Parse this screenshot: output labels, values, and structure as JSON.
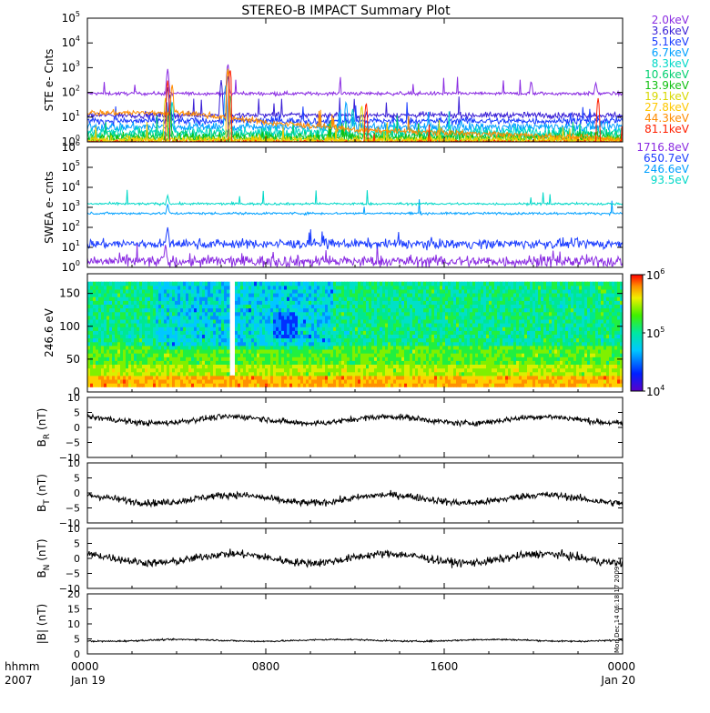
{
  "chart_data": {
    "type": "line",
    "title": "STEREO-B IMPACT Summary Plot",
    "time_axis": {
      "row1_label": "hhmm",
      "row2_label": "2007",
      "ticks": [
        {
          "hhmm": "0000",
          "date": "Jan 19",
          "hours": 0
        },
        {
          "hhmm": "0800",
          "date": "",
          "hours": 8
        },
        {
          "hhmm": "1600",
          "date": "",
          "hours": 16
        },
        {
          "hhmm": "0000",
          "date": "Jan 20",
          "hours": 24
        }
      ],
      "xlim": [
        0,
        24
      ]
    },
    "panels": [
      {
        "id": "ste",
        "type": "line",
        "ylabel": "STE e- Cnts",
        "yscale": "log",
        "ylim": [
          1,
          100000
        ],
        "yticks": [
          [
            "10",
            "0"
          ],
          [
            "10",
            "1"
          ],
          [
            "10",
            "2"
          ],
          [
            "10",
            "3"
          ],
          [
            "10",
            "4"
          ],
          [
            "10",
            "5"
          ]
        ],
        "legend_placement": "right",
        "series": [
          {
            "name": "2.0keV",
            "color": "#8a2be2",
            "base": 90,
            "noise": 0.06,
            "spikes": [
              [
                3.6,
                800
              ],
              [
                6.3,
                1400
              ],
              [
                22.8,
                160
              ],
              [
                19.9,
                200
              ]
            ]
          },
          {
            "name": "3.6keV",
            "color": "#3a1fd6",
            "base": 12,
            "noise": 0.1,
            "spikes": [
              [
                3.6,
                150
              ],
              [
                6.3,
                900
              ],
              [
                6.0,
                300
              ]
            ]
          },
          {
            "name": "5.1keV",
            "color": "#1a3cff",
            "base": 7,
            "noise": 0.12,
            "spikes": [
              [
                3.7,
                80
              ],
              [
                6.3,
                500
              ]
            ]
          },
          {
            "name": "6.7keV",
            "color": "#00a0ff",
            "base": 4,
            "noise": 0.15,
            "spikes": [
              [
                6.2,
                200
              ],
              [
                11.6,
                40
              ]
            ]
          },
          {
            "name": "8.3keV",
            "color": "#00d8c8",
            "base": 2.5,
            "noise": 0.18,
            "spikes": [
              [
                3.8,
                40
              ],
              [
                11.9,
                20
              ]
            ]
          },
          {
            "name": "10.6keV",
            "color": "#00d070",
            "base": 1.8,
            "noise": 0.18,
            "spikes": [
              [
                6.4,
                80
              ]
            ]
          },
          {
            "name": "13.9keV",
            "color": "#10c010",
            "base": 1.4,
            "noise": 0.18,
            "spikes": [
              [
                3.7,
                30
              ]
            ]
          },
          {
            "name": "19.1keV",
            "color": "#d8d800",
            "base": 1.2,
            "noise": 0.15,
            "spikes": [
              [
                3.5,
                60
              ],
              [
                12.3,
                30
              ]
            ]
          },
          {
            "name": "27.8keV",
            "color": "#ffc800",
            "base": 1.1,
            "noise": 0.12,
            "spikes": [
              [
                6.3,
                1000
              ]
            ]
          },
          {
            "name": "44.3keV",
            "color": "#ff8c00",
            "base": 1.0,
            "noise": 0.1,
            "spikes": [
              [
                3.8,
                200
              ],
              [
                6.3,
                800
              ]
            ],
            "trend": [
              [
                0,
                15
              ],
              [
                4,
                15
              ],
              [
                8,
                6
              ],
              [
                12,
                3
              ],
              [
                24,
                1.2
              ]
            ]
          },
          {
            "name": "81.1keV",
            "color": "#ff2000",
            "base": 1.0,
            "noise": 0.05,
            "spikes": [
              [
                3.6,
                300
              ],
              [
                6.4,
                900
              ],
              [
                12.5,
                40
              ],
              [
                22.9,
                60
              ]
            ]
          }
        ]
      },
      {
        "id": "swea",
        "type": "line",
        "ylabel": "SWEA e- cnts",
        "yscale": "log",
        "ylim": [
          1,
          1000000
        ],
        "yticks": [
          [
            "10",
            "0"
          ],
          [
            "10",
            "1"
          ],
          [
            "10",
            "2"
          ],
          [
            "10",
            "3"
          ],
          [
            "10",
            "4"
          ],
          [
            "10",
            "5"
          ],
          [
            "10",
            "6"
          ]
        ],
        "legend_placement": "right",
        "series": [
          {
            "name": "1716.8eV",
            "color": "#8a2be2",
            "base": 2,
            "noise": 0.25,
            "spikes": [
              [
                3.5,
                10
              ]
            ]
          },
          {
            "name": "650.7eV",
            "color": "#1a3cff",
            "base": 15,
            "noise": 0.2,
            "spikes": [
              [
                3.6,
                80
              ]
            ]
          },
          {
            "name": "246.6eV",
            "color": "#00a0ff",
            "base": 500,
            "noise": 0.05,
            "spikes": [
              [
                3.6,
                900
              ]
            ]
          },
          {
            "name": "93.5eV",
            "color": "#00d8c8",
            "base": 1500,
            "noise": 0.05,
            "spikes": [
              [
                3.6,
                2600
              ]
            ]
          }
        ]
      },
      {
        "id": "pad",
        "type": "heatmap",
        "ylabel": "246.6 eV",
        "ylim": [
          0,
          180
        ],
        "yticks": [
          "0",
          "50",
          "100",
          "150"
        ],
        "colorbar": {
          "scale": "log",
          "range": [
            10000,
            1000000
          ],
          "ticks": [
            [
              "10",
              "6"
            ],
            [
              "10",
              "5"
            ],
            [
              "10",
              "4"
            ]
          ]
        }
      },
      {
        "id": "br",
        "type": "line",
        "ylabel_main": "B",
        "ylabel_sub": "R",
        "ylabel_unit": "(nT)",
        "ylim": [
          -10,
          10
        ],
        "yticks": [
          "10",
          "5",
          "0",
          "−5",
          "−10"
        ],
        "series": [
          {
            "name": "",
            "color": "#000000",
            "mean": 2.5,
            "amp": 1.8
          }
        ]
      },
      {
        "id": "bt",
        "type": "line",
        "ylabel_main": "B",
        "ylabel_sub": "T",
        "ylabel_unit": "(nT)",
        "ylim": [
          -10,
          10
        ],
        "yticks": [
          "10",
          "5",
          "0",
          "−5",
          "−10"
        ],
        "series": [
          {
            "name": "",
            "color": "#000000",
            "mean": -2.0,
            "amp": 2.2
          }
        ]
      },
      {
        "id": "bn",
        "type": "line",
        "ylabel_main": "B",
        "ylabel_sub": "N",
        "ylabel_unit": "(nT)",
        "ylim": [
          -10,
          10
        ],
        "yticks": [
          "10",
          "5",
          "0",
          "−5",
          "−10"
        ],
        "series": [
          {
            "name": "",
            "color": "#000000",
            "mean": 0.0,
            "amp": 2.5
          }
        ]
      },
      {
        "id": "bmag",
        "type": "line",
        "ylabel_main": "|B|",
        "ylabel_sub": "",
        "ylabel_unit": "(nT)",
        "ylim": [
          0,
          20
        ],
        "yticks": [
          "20",
          "15",
          "10",
          "5",
          "0"
        ],
        "series": [
          {
            "name": "",
            "color": "#000000",
            "mean": 4.5,
            "amp": 0.5
          }
        ]
      }
    ],
    "timestamp": "Mon Dec 14 06:18:17 2009"
  }
}
